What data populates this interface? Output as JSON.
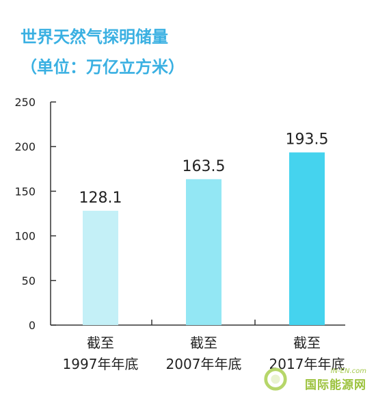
{
  "chart_data": {
    "type": "bar",
    "title": "世界天然气探明储量",
    "subtitle": "（单位：万亿立方米）",
    "categories": [
      [
        "截至",
        "1997年年底"
      ],
      [
        "截至",
        "2007年年底"
      ],
      [
        "截至",
        "2017年年底"
      ]
    ],
    "values": [
      128.1,
      163.5,
      193.5
    ],
    "value_labels": [
      "128.1",
      "163.5",
      "193.5"
    ],
    "ylim": [
      0,
      250
    ],
    "yticks": [
      0,
      50,
      100,
      150,
      200,
      250
    ],
    "xlabel": "",
    "ylabel": "",
    "grid": false,
    "legend": "none",
    "colors": {
      "title": "#3ab0e2",
      "bars": [
        "#c4f0f7",
        "#93e7f4",
        "#45d3ee"
      ],
      "axis": "#333333",
      "text": "#222222"
    }
  },
  "watermark": {
    "top": "IN-EN.com",
    "bottom": "国际能源网"
  }
}
